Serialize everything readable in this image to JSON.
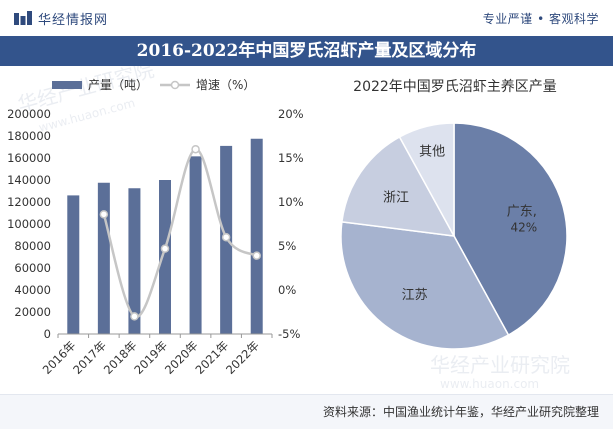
{
  "header": {
    "brand": "华经情报网",
    "slogan": "专业严谨 • 客观科学"
  },
  "title": "2016-2022年中国罗氏沼虾产量及区域分布",
  "footer": {
    "source": "资料来源：中国渔业统计年鉴，华经产业研究院整理"
  },
  "watermark": {
    "line1": "华经产业研究院",
    "line2": "www.huaon.com"
  },
  "colors": {
    "bar": "#5b6f98",
    "line": "#c6c6c6",
    "title_bg": "#33548c",
    "pie": [
      "#6b7fa8",
      "#a6b3cf",
      "#c7cee0",
      "#dde2ee"
    ]
  },
  "chart_data": [
    {
      "type": "bar",
      "categories": [
        "2016年",
        "2017年",
        "2018年",
        "2019年",
        "2020年",
        "2021年",
        "2022年"
      ],
      "series": [
        {
          "name": "产量（吨）",
          "type": "bar",
          "axis": "left",
          "values": [
            126000,
            137500,
            132500,
            140000,
            161500,
            171000,
            177500
          ]
        },
        {
          "name": "增速（%）",
          "type": "line",
          "axis": "right",
          "values": [
            null,
            8.6,
            -3.0,
            4.7,
            16.0,
            6.0,
            3.9
          ]
        }
      ],
      "y_left": {
        "ylim": [
          0,
          200000
        ],
        "ticks": [
          "0",
          "20000",
          "40000",
          "60000",
          "80000",
          "100000",
          "120000",
          "140000",
          "160000",
          "180000",
          "200000"
        ]
      },
      "y_right": {
        "ylim": [
          -5,
          20
        ],
        "ticks": [
          "-5%",
          "0%",
          "5%",
          "10%",
          "15%",
          "20%"
        ]
      },
      "legend": "top-left"
    },
    {
      "type": "pie",
      "title": "2022年中国罗氏沼虾主养区产量",
      "labels": [
        "广东,",
        "江苏",
        "浙江",
        "其他"
      ],
      "values": [
        42,
        35,
        15,
        8
      ],
      "data_labels": [
        "42%",
        "",
        "",
        ""
      ]
    }
  ]
}
